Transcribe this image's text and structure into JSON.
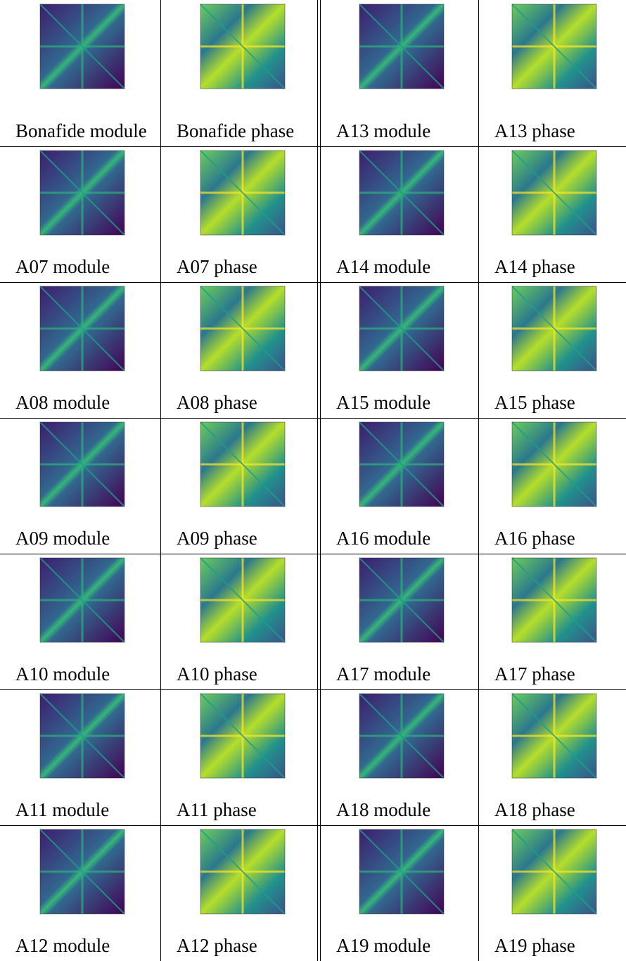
{
  "table": {
    "rows": [
      [
        "Bonafide module",
        "Bonafide phase",
        "A13 module",
        "A13 phase"
      ],
      [
        "A07 module",
        "A07 phase",
        "A14 module",
        "A14 phase"
      ],
      [
        "A08 module",
        "A08 phase",
        "A15 module",
        "A15 phase"
      ],
      [
        "A09 module",
        "A09 phase",
        "A16 module",
        "A16 phase"
      ],
      [
        "A10 module",
        "A10 phase",
        "A17 module",
        "A17 phase"
      ],
      [
        "A11 module",
        "A11 phase",
        "A18 module",
        "A18 phase"
      ],
      [
        "A12 module",
        "A12 phase",
        "A19 module",
        "A19 phase"
      ]
    ]
  }
}
